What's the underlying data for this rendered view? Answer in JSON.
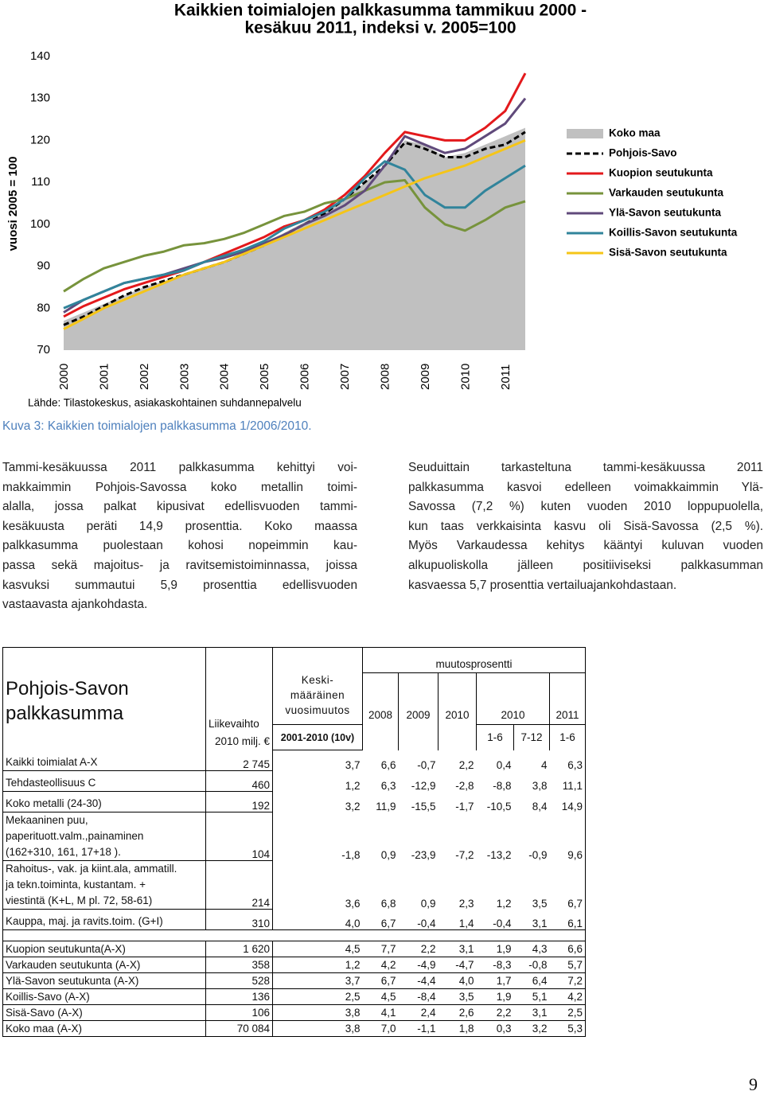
{
  "chart_data": {
    "type": "line",
    "title": [
      "Kaikkien toimialojen palkkasumma tammikuu 2000 -",
      "kesäkuu 2011, indeksi v. 2005=100"
    ],
    "ylabel": "vuosi 2005 = 100",
    "source": "Lähde: Tilastokeskus, asiakaskohtainen suhdannepalvelu",
    "x": [
      2000,
      2000.5,
      2001,
      2001.5,
      2002,
      2002.5,
      2003,
      2003.5,
      2004,
      2004.5,
      2005,
      2005.5,
      2006,
      2006.5,
      2007,
      2007.5,
      2008,
      2008.5,
      2009,
      2009.5,
      2010,
      2010.5,
      2011,
      2011.5
    ],
    "xlim": [
      2000,
      2011.5
    ],
    "xticks": [
      2000,
      2001,
      2002,
      2003,
      2004,
      2005,
      2006,
      2007,
      2008,
      2009,
      2010,
      2011
    ],
    "ylim": [
      70,
      140
    ],
    "yticks": [
      70,
      80,
      90,
      100,
      110,
      120,
      130,
      140
    ],
    "grid": false,
    "legend": "right",
    "series": [
      {
        "name": "Koko maa",
        "color": "#c0c0c0",
        "area": true,
        "values": [
          77,
          79,
          81,
          83,
          85,
          86.5,
          88,
          89.5,
          91,
          93,
          95.5,
          98,
          100.5,
          103,
          106,
          110,
          114,
          120,
          119,
          116,
          117,
          119,
          121,
          123
        ]
      },
      {
        "name": "Pohjois-Savo",
        "color": "#000000",
        "dash": true,
        "values": [
          76,
          78,
          80.5,
          83,
          85,
          86.5,
          88,
          89.5,
          91,
          93,
          95,
          97.5,
          100,
          102.5,
          106,
          110,
          114,
          119.5,
          118,
          116,
          116,
          118,
          119,
          122
        ]
      },
      {
        "name": "Kuopion seutukunta",
        "color": "#e3191c",
        "values": [
          78,
          80.5,
          82.5,
          84.5,
          86,
          87.5,
          89,
          91,
          93,
          95,
          97,
          99.5,
          101,
          103.5,
          107,
          111.5,
          117,
          122,
          121,
          120,
          120,
          123,
          127,
          136
        ]
      },
      {
        "name": "Varkauden seutukunta",
        "color": "#77933c",
        "values": [
          84,
          87,
          89.5,
          91,
          92.5,
          93.5,
          95,
          95.5,
          96.5,
          98,
          100,
          102,
          103,
          105,
          106,
          108,
          110,
          110.5,
          104,
          100,
          98.5,
          101,
          104,
          105.5
        ]
      },
      {
        "name": "Ylä-Savon seutukunta",
        "color": "#604a7b",
        "values": [
          79,
          82,
          84,
          86,
          87,
          88,
          89.5,
          91,
          92,
          93.5,
          95.5,
          97.5,
          100,
          102,
          104.5,
          108,
          114,
          121,
          119,
          117,
          118,
          121,
          124,
          130
        ]
      },
      {
        "name": "Koillis-Savon seutukunta",
        "color": "#31849b",
        "values": [
          80,
          82,
          84,
          86,
          87,
          88,
          89,
          91,
          92.5,
          94,
          96,
          99,
          101,
          103,
          106,
          111,
          115,
          113,
          107,
          104,
          104,
          108,
          111,
          114
        ]
      },
      {
        "name": "Sisä-Savon seutukunta",
        "color": "#f5c518",
        "values": [
          75,
          77.5,
          80,
          82,
          84,
          86,
          88,
          89.5,
          91,
          93,
          95,
          97,
          99,
          101,
          103,
          105,
          107,
          109,
          111,
          112.5,
          114,
          116,
          118,
          120
        ]
      }
    ]
  },
  "caption": "Kuva 3: Kaikkien toimialojen palkkasumma 1/2006/2010.",
  "paragraphs": [
    [
      "Tammi-kesäkuussa 2011 palkkasumma kehittyi voi-",
      "makkaimmin Pohjois-Savossa koko metallin toimi-",
      "alalla, jossa palkat kipusivat edellisvuoden tammi-",
      "kesäkuusta peräti 14,9 prosenttia. Koko maassa",
      "palkkasumma puolestaan kohosi nopeimmin kau-",
      "passa sekä majoitus- ja ravitsemistoiminnassa, joissa",
      "kasvuksi summautui 5,9 prosenttia edellisvuoden",
      "vastaavasta ajankohdasta."
    ],
    [
      "Seuduittain tarkasteltuna tammi-kesäkuussa 2011",
      "palkkasumma kasvoi edelleen voimakkaimmin Ylä-",
      "Savossa (7,2 %) kuten vuoden 2010 loppupuolella,",
      "kun taas verkkaisinta kasvu oli Sisä-Savossa (2,5 %).",
      "Myös Varkaudessa kehitys kääntyi kuluvan vuoden",
      "alkupuoliskolla jälleen positiiviseksi palkkasumman",
      "kasvaessa 5,7 prosenttia vertailuajankohdastaan."
    ]
  ],
  "table": {
    "header": {
      "title": "Pohjois-Savon palkkasumma",
      "turnover": [
        "Liikevaihto",
        "2010 milj. €"
      ],
      "avg_change": [
        "Keski-\nmääräinen\nvuosimuutos",
        "2001-2010 (10v)"
      ],
      "change_group": "muutosprosentti",
      "years": [
        "2008",
        "2009",
        "2010",
        "2010",
        "2011"
      ],
      "periods": [
        "1-6",
        "7-12",
        "1-6"
      ]
    },
    "groups": [
      [
        {
          "label": "Kaikki toimialat A-X",
          "values": [
            "2 745",
            "3,7",
            "6,6",
            "-0,7",
            "2,2",
            "0,4",
            "4",
            "6,3"
          ]
        },
        {
          "label": "Tehdasteollisuus C",
          "values": [
            "460",
            "1,2",
            "6,3",
            "-12,9",
            "-2,8",
            "-8,8",
            "3,8",
            "11,1"
          ]
        },
        {
          "label": "Koko metalli (24-30)",
          "values": [
            "192",
            "3,2",
            "11,9",
            "-15,5",
            "-1,7",
            "-10,5",
            "8,4",
            "14,9"
          ]
        },
        {
          "label": "Mekaaninen puu,\npaperituott.valm.,painaminen\n(162+310, 161, 17+18 ).",
          "values": [
            "104",
            "-1,8",
            "0,9",
            "-23,9",
            "-7,2",
            "-13,2",
            "-0,9",
            "9,6"
          ]
        },
        {
          "label": "Rahoitus-, vak. ja kiint.ala, ammatill.\nja tekn.toiminta, kustantam. +\nviestintä (K+L, M pl. 72, 58-61)",
          "values": [
            "214",
            "3,6",
            "6,8",
            "0,9",
            "2,3",
            "1,2",
            "3,5",
            "6,7"
          ]
        },
        {
          "label": "Kauppa, maj. ja ravits.toim. (G+I)",
          "values": [
            "310",
            "4,0",
            "6,7",
            "-0,4",
            "1,4",
            "-0,4",
            "3,1",
            "6,1"
          ]
        }
      ],
      [
        {
          "label": "Kuopion seutukunta(A-X)",
          "values": [
            "1 620",
            "4,5",
            "7,7",
            "2,2",
            "3,1",
            "1,9",
            "4,3",
            "6,6"
          ]
        },
        {
          "label": "Varkauden seutukunta (A-X)",
          "values": [
            "358",
            "1,2",
            "4,2",
            "-4,9",
            "-4,7",
            "-8,3",
            "-0,8",
            "5,7"
          ]
        },
        {
          "label": "Ylä-Savon seutukunta (A-X)",
          "values": [
            "528",
            "3,7",
            "6,7",
            "-4,4",
            "4,0",
            "1,7",
            "6,4",
            "7,2"
          ]
        },
        {
          "label": "Koillis-Savo (A-X)",
          "values": [
            "136",
            "2,5",
            "4,5",
            "-8,4",
            "3,5",
            "1,9",
            "5,1",
            "4,2"
          ]
        },
        {
          "label": "Sisä-Savo (A-X)",
          "values": [
            "106",
            "3,8",
            "4,1",
            "2,4",
            "2,6",
            "2,2",
            "3,1",
            "2,5"
          ]
        },
        {
          "label": "Koko maa (A-X)",
          "values": [
            "70 084",
            "3,8",
            "7,0",
            "-1,1",
            "1,8",
            "0,3",
            "3,2",
            "5,3"
          ]
        }
      ]
    ]
  },
  "page_number": "9"
}
